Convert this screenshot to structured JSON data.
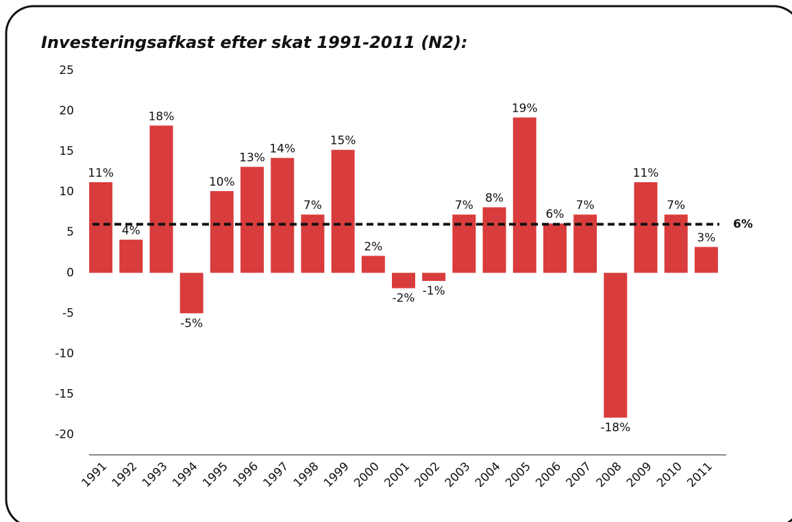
{
  "chart_data": {
    "type": "bar",
    "title": "Investeringsafkast efter skat 1991-2011 (N2):",
    "categories": [
      "1991",
      "1992",
      "1993",
      "1994",
      "1995",
      "1996",
      "1997",
      "1998",
      "1999",
      "2000",
      "2001",
      "2002",
      "2003",
      "2004",
      "2005",
      "2006",
      "2007",
      "2008",
      "2009",
      "2010",
      "2011"
    ],
    "values": [
      11.2,
      4.1,
      18.2,
      -5,
      10.1,
      13.1,
      14.2,
      7.2,
      15.2,
      2.1,
      -1.9,
      -1,
      7.2,
      8.1,
      19.2,
      6.1,
      7.2,
      -17.9,
      11.2,
      7.2,
      3.2
    ],
    "value_labels": [
      "11%",
      "4%",
      "18%",
      "-5%",
      "10%",
      "13%",
      "14%",
      "7%",
      "15%",
      "2%",
      "-2%",
      "-1%",
      "7%",
      "8%",
      "19%",
      "6%",
      "7%",
      "-18%",
      "11%",
      "7%",
      "3%"
    ],
    "color": "#d93c3c",
    "ylim": [
      -22.5,
      25
    ],
    "yticks": [
      -20,
      -15,
      -10,
      -5,
      0,
      5,
      10,
      15,
      20,
      25
    ],
    "reference_line": {
      "value": 6,
      "label": "6%"
    },
    "grid": false
  }
}
